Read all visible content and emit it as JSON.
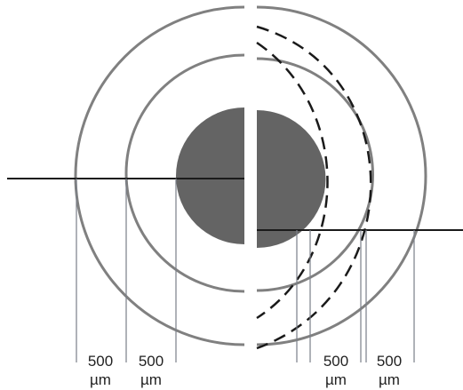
{
  "colors": {
    "ring": "#808080",
    "core": "#646464",
    "line": "#1a1a1a",
    "guide": "#7a7f88",
    "text": "#222222"
  },
  "labels": {
    "left_outer": {
      "value": "500",
      "unit": "µm"
    },
    "left_inner": {
      "value": "500",
      "unit": "µm"
    },
    "right_inner": {
      "value": "500",
      "unit": "µm"
    },
    "right_outer": {
      "value": "500",
      "unit": "µm"
    }
  }
}
